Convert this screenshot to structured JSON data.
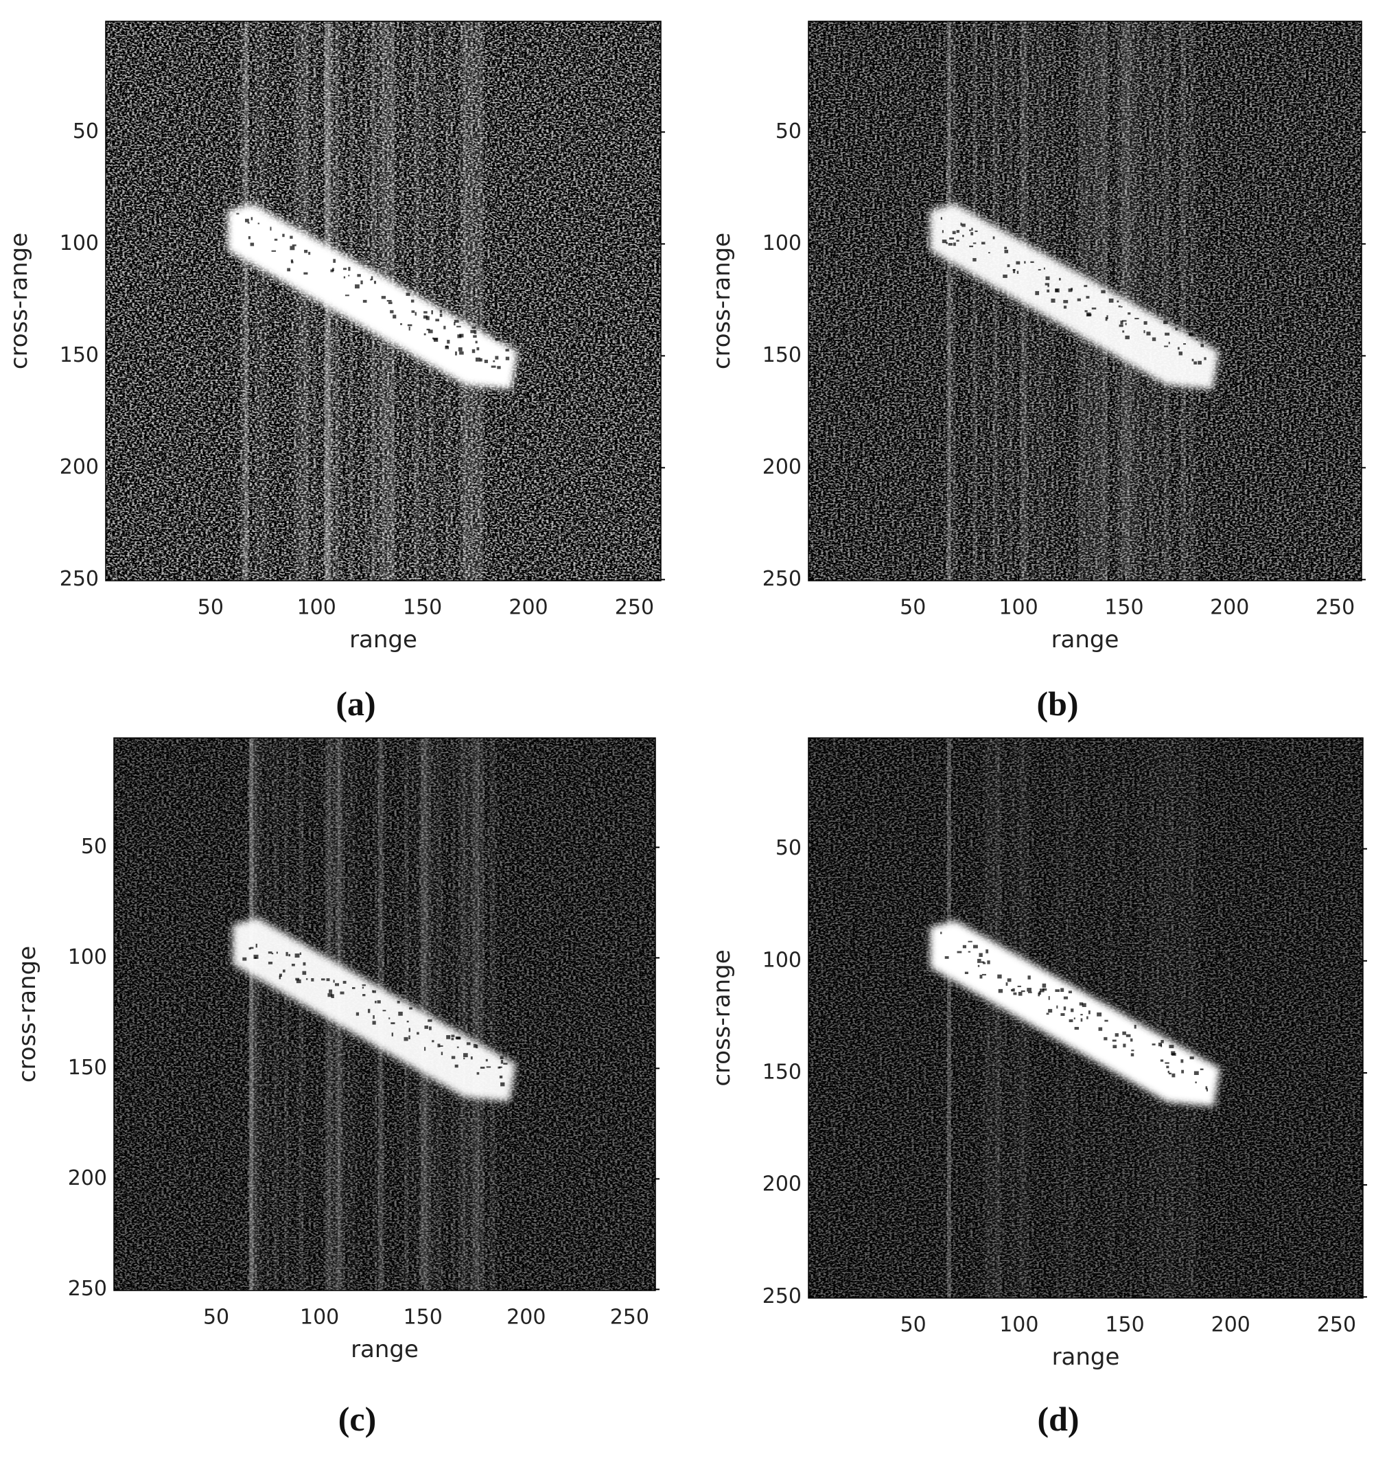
{
  "chart_data": [
    {
      "type": "image",
      "caption": "(a)",
      "xlabel": "range",
      "ylabel": "cross-range",
      "xlim": [
        0.5,
        262.5
      ],
      "ylim": [
        0.5,
        250.5
      ],
      "xticks": [
        50,
        100,
        150,
        200,
        250
      ],
      "yticks": [
        50,
        100,
        150,
        200,
        250
      ]
    },
    {
      "type": "image",
      "caption": "(b)",
      "xlabel": "range",
      "ylabel": "cross-range",
      "xlim": [
        0.5,
        262.5
      ],
      "ylim": [
        0.5,
        250.5
      ],
      "xticks": [
        50,
        100,
        150,
        200,
        250
      ],
      "yticks": [
        50,
        100,
        150,
        200,
        250
      ]
    },
    {
      "type": "image",
      "caption": "(c)",
      "xlabel": "range",
      "ylabel": "cross-range",
      "xlim": [
        0.5,
        262.5
      ],
      "ylim": [
        0.5,
        250.5
      ],
      "xticks": [
        50,
        100,
        150,
        200,
        250
      ],
      "yticks": [
        50,
        100,
        150,
        200,
        250
      ]
    },
    {
      "type": "image",
      "caption": "(d)",
      "xlabel": "range",
      "ylabel": "cross-range",
      "xlim": [
        0.5,
        262.5
      ],
      "ylim": [
        0.5,
        250.5
      ],
      "xticks": [
        50,
        100,
        150,
        200,
        250
      ],
      "yticks": [
        50,
        100,
        150,
        200,
        250
      ]
    }
  ]
}
